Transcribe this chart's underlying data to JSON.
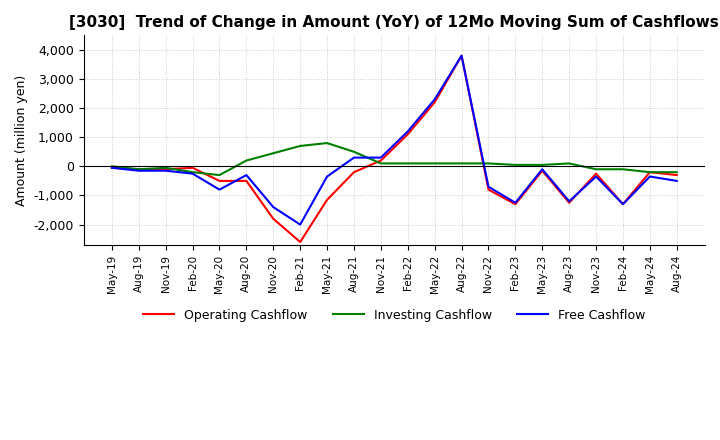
{
  "title": "[3030]  Trend of Change in Amount (YoY) of 12Mo Moving Sum of Cashflows",
  "ylabel": "Amount (million yen)",
  "ylim": [
    -2700,
    4500
  ],
  "yticks": [
    -2000,
    -1000,
    0,
    1000,
    2000,
    3000,
    4000
  ],
  "x_labels": [
    "May-19",
    "Aug-19",
    "Nov-19",
    "Feb-20",
    "May-20",
    "Aug-20",
    "Nov-20",
    "Feb-21",
    "May-21",
    "Aug-21",
    "Nov-21",
    "Feb-22",
    "May-22",
    "Aug-22",
    "Nov-22",
    "Feb-23",
    "May-23",
    "Aug-23",
    "Nov-23",
    "Feb-24",
    "May-24",
    "Aug-24"
  ],
  "operating": [
    -50,
    -100,
    -100,
    -50,
    -500,
    -500,
    -1800,
    -2600,
    -1150,
    -200,
    200,
    1100,
    2200,
    3800,
    -800,
    -1300,
    -150,
    -1250,
    -250,
    -1300,
    -200,
    -300
  ],
  "investing": [
    0,
    -100,
    -50,
    -200,
    -300,
    200,
    450,
    700,
    800,
    500,
    100,
    100,
    100,
    100,
    100,
    50,
    50,
    100,
    -100,
    -100,
    -200,
    -200
  ],
  "free": [
    -50,
    -150,
    -150,
    -250,
    -800,
    -300,
    -1400,
    -2000,
    -350,
    300,
    300,
    1200,
    2300,
    3800,
    -700,
    -1250,
    -100,
    -1200,
    -350,
    -1300,
    -350,
    -500
  ],
  "operating_color": "#FF0000",
  "investing_color": "#008000",
  "free_color": "#0000FF",
  "background_color": "#FFFFFF",
  "grid_color": "#CCCCCC",
  "title_fontsize": 11,
  "label_fontsize": 9
}
